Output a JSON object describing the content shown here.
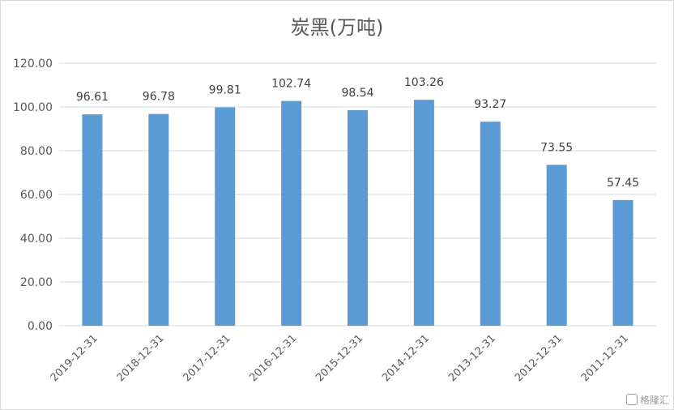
{
  "chart_data": {
    "type": "bar",
    "title": "炭黑(万吨)",
    "categories": [
      "2019-12-31",
      "2018-12-31",
      "2017-12-31",
      "2016-12-31",
      "2015-12-31",
      "2014-12-31",
      "2013-12-31",
      "2012-12-31",
      "2011-12-31"
    ],
    "values": [
      96.61,
      96.78,
      99.81,
      102.74,
      98.54,
      103.26,
      93.27,
      73.55,
      57.45
    ],
    "data_labels": [
      "96.61",
      "96.78",
      "99.81",
      "102.74",
      "98.54",
      "103.26",
      "93.27",
      "73.55",
      "57.45"
    ],
    "ylim": [
      0,
      120
    ],
    "yticks": [
      "0.00",
      "20.00",
      "40.00",
      "60.00",
      "80.00",
      "100.00",
      "120.00"
    ],
    "ytick_values": [
      0,
      20,
      40,
      60,
      80,
      100,
      120
    ],
    "grid": true,
    "legend": "none",
    "bar_color": "#5b9bd5",
    "grid_color": "#d9d9d9"
  },
  "watermark": "格隆汇"
}
